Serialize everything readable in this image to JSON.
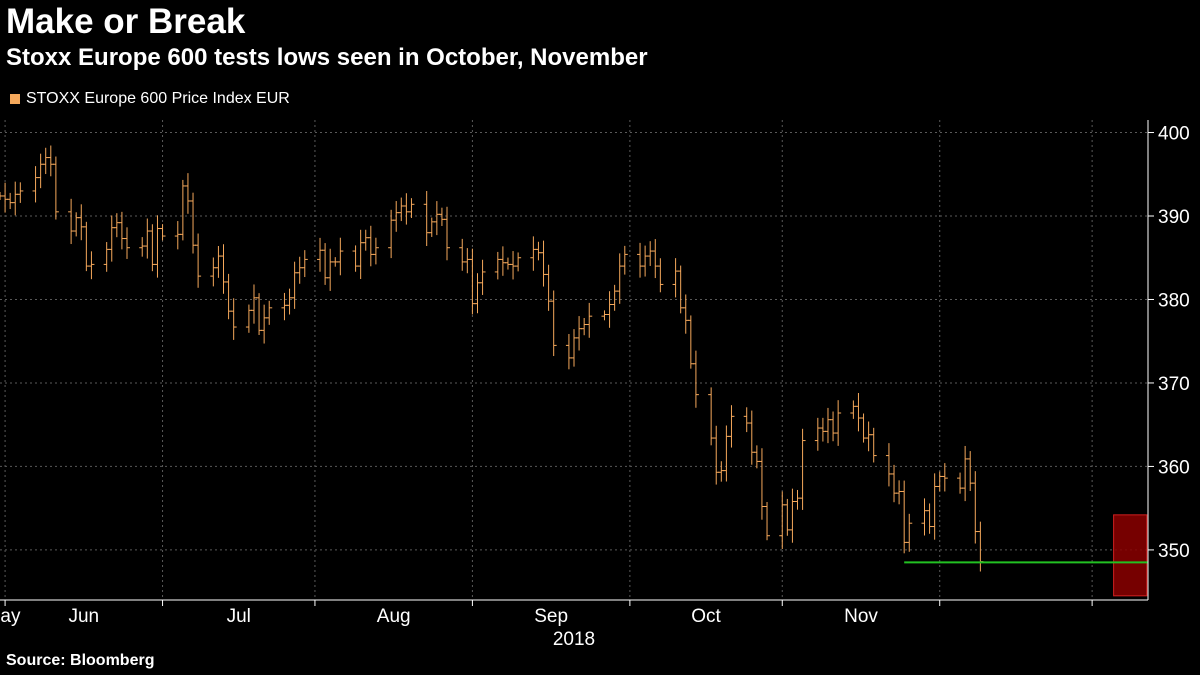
{
  "header": {
    "title": "Make or Break",
    "subtitle": "Stoxx Europe 600 tests lows seen in October, November"
  },
  "legend": {
    "label": "STOXX Europe 600 Price Index EUR",
    "color": "#F5A85B"
  },
  "source": "Source: Bloomberg",
  "colors": {
    "series": "#F5A85B",
    "support": "#22C022",
    "highlight_fill": "#8B0000",
    "highlight_stroke": "#D02020",
    "grid": "#5a5a5a"
  },
  "chart_data": {
    "type": "line",
    "style": "ohlc-bars",
    "title": "Make or Break",
    "subtitle": "Stoxx Europe 600 tests lows seen in October, November",
    "series": [
      {
        "name": "STOXX Europe 600 Price Index EUR",
        "frequency": "daily",
        "start": "2018-04-30",
        "end": "2018-12-10",
        "values": [
          392.4,
          392.0,
          391.6,
          392.6,
          393.0,
          394.6,
          396.2,
          397.0,
          396.2,
          390.5,
          388.2,
          389.8,
          388.7,
          384.0,
          384.2,
          386.0,
          388.6,
          389.2,
          387.3,
          386.2,
          386.4,
          388.2,
          384.2,
          388.5,
          387.6,
          387.8,
          393.6,
          391.8,
          386.5,
          382.8,
          383.8,
          385.2,
          382.1,
          378.6,
          376.7,
          378.7,
          380.2,
          376.3,
          377.8,
          379.0,
          379.3,
          380.2,
          383.2,
          383.8,
          384.8,
          385.9,
          382.6,
          384.5,
          384.5,
          385.8,
          384.0,
          386.8,
          387.4,
          385.4,
          386.2,
          389.5,
          390.4,
          391.2,
          390.5,
          391.4,
          388.0,
          389.3,
          390.2,
          389.6,
          386.2,
          384.5,
          384.8,
          379.5,
          382.0,
          383.3,
          384.8,
          384.4,
          384.2,
          384.0,
          385.0,
          386.0,
          385.6,
          383.0,
          379.8,
          374.5,
          373.0,
          375.4,
          376.5,
          377.0,
          378.0,
          378.2,
          379.4,
          381.0,
          384.0,
          385.4,
          384.0,
          385.2,
          385.8,
          384.0,
          381.8,
          383.4,
          379.0,
          377.5,
          372.3,
          368.6,
          363.4,
          359.3,
          359.5,
          363.6,
          366.0,
          365.2,
          361.7,
          360.6,
          355.2,
          351.7,
          355.4,
          352.4,
          355.8,
          356.2,
          363.1,
          364.6,
          364.2,
          365.6,
          364.0,
          366.4,
          367.2,
          365.8,
          363.4,
          363.8,
          361.3,
          359.1,
          356.8,
          357.0,
          350.9,
          353.2,
          354.7,
          352.8,
          357.6,
          358.8,
          358.6,
          357.4,
          360.9,
          358.0,
          352.2,
          348.6
        ]
      }
    ],
    "support_level": 348.5,
    "xlabel": "2018",
    "x_tick_labels": [
      "May",
      "Jun",
      "Jul",
      "Aug",
      "Sep",
      "Oct",
      "Nov"
    ],
    "y_ticks": [
      350,
      360,
      370,
      380,
      390,
      400
    ],
    "ylim": [
      344,
      401.5
    ],
    "grid": true,
    "y_axis_side": "right",
    "legend_position": "top-left",
    "annotations": [
      {
        "type": "horizontal-line",
        "value": 348.5,
        "from": "2018-10-25",
        "color": "green"
      },
      {
        "type": "highlight-box",
        "y_range": [
          344.5,
          354.2
        ],
        "x_range": [
          "2018-12-07",
          "2018-12-10"
        ],
        "color": "dark-red"
      }
    ]
  }
}
